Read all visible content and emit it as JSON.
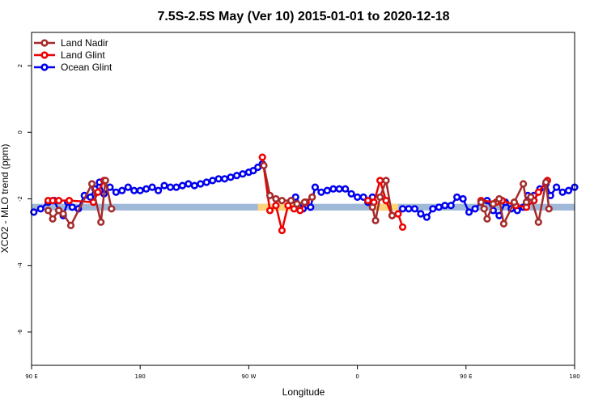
{
  "chart_data": {
    "type": "line",
    "title": "7.5S-2.5S May (Ver 10)   2015-01-01 to 2020-12-18",
    "xlabel": "Longitude",
    "ylabel": "XCO2 - MLO trend (ppm)",
    "xlim": [
      90,
      450
    ],
    "ylim": [
      -7.0,
      3.0
    ],
    "x_ticks": [
      {
        "value": 90,
        "label": "90 E"
      },
      {
        "value": 162,
        "label": "180"
      },
      {
        "value": 234,
        "label": "90 W"
      },
      {
        "value": 306,
        "label": "0"
      },
      {
        "value": 378,
        "label": "90 E"
      },
      {
        "value": 450,
        "label": "180"
      }
    ],
    "y_ticks": [
      {
        "value": 2,
        "label": "2"
      },
      {
        "value": 0,
        "label": "0"
      },
      {
        "value": -2,
        "label": "-2"
      },
      {
        "value": -4,
        "label": "-4"
      },
      {
        "value": -6,
        "label": "-6"
      }
    ],
    "grid": false,
    "legend_position": "top-left",
    "reference_bands": [
      {
        "color": "#9fb8d8",
        "y_min": -2.35,
        "y_max": -2.15,
        "x_range": [
          90,
          450
        ]
      },
      {
        "color": "#ffd37a",
        "y_min": -2.35,
        "y_max": -2.15,
        "x_range": [
          240,
          276
        ]
      },
      {
        "color": "#ffd37a",
        "y_min": -2.35,
        "y_max": -2.15,
        "x_range": [
          316,
          333
        ]
      }
    ],
    "series": [
      {
        "name": "Ocean Glint",
        "color": "#0000ee",
        "segments": [
          [
            [
              91.5,
              -2.4
            ],
            [
              96,
              -2.3
            ],
            [
              101,
              -2.1
            ],
            [
              105,
              -2.05
            ],
            [
              108,
              -2.35
            ],
            [
              111,
              -2.5
            ],
            [
              114,
              -2.1
            ],
            [
              117,
              -2.25
            ],
            [
              121,
              -2.3
            ],
            [
              125,
              -1.9
            ],
            [
              129,
              -1.95
            ],
            [
              132,
              -1.7
            ],
            [
              135,
              -1.5
            ],
            [
              138,
              -1.85
            ],
            [
              142,
              -1.65
            ],
            [
              146,
              -1.8
            ],
            [
              150,
              -1.75
            ],
            [
              154,
              -1.65
            ],
            [
              158,
              -1.75
            ],
            [
              162,
              -1.75
            ],
            [
              166,
              -1.7
            ],
            [
              170,
              -1.65
            ],
            [
              174,
              -1.75
            ],
            [
              178,
              -1.6
            ],
            [
              182,
              -1.65
            ],
            [
              186,
              -1.65
            ],
            [
              190,
              -1.6
            ],
            [
              194,
              -1.55
            ],
            [
              198,
              -1.6
            ],
            [
              202,
              -1.55
            ],
            [
              206,
              -1.5
            ],
            [
              210,
              -1.45
            ],
            [
              214,
              -1.4
            ],
            [
              218,
              -1.4
            ],
            [
              222,
              -1.35
            ],
            [
              226,
              -1.3
            ],
            [
              230,
              -1.25
            ],
            [
              234,
              -1.2
            ],
            [
              237,
              -1.15
            ],
            [
              240,
              -1.05
            ],
            [
              243,
              -0.95
            ]
          ],
          [
            [
              265,
              -1.95
            ],
            [
              270,
              -2.3
            ],
            [
              275,
              -2.25
            ],
            [
              278,
              -1.65
            ],
            [
              282,
              -1.8
            ],
            [
              286,
              -1.75
            ],
            [
              290,
              -1.7
            ],
            [
              294,
              -1.7
            ],
            [
              298,
              -1.7
            ],
            [
              302,
              -1.85
            ],
            [
              306,
              -1.95
            ],
            [
              310,
              -1.95
            ],
            [
              313,
              -2.1
            ],
            [
              316,
              -1.95
            ]
          ],
          [
            [
              336,
              -2.3
            ],
            [
              340,
              -2.3
            ],
            [
              344,
              -2.3
            ],
            [
              348,
              -2.45
            ],
            [
              352,
              -2.55
            ],
            [
              356,
              -2.3
            ],
            [
              360,
              -2.25
            ],
            [
              364,
              -2.2
            ],
            [
              368,
              -2.2
            ],
            [
              372,
              -1.95
            ],
            [
              376,
              -2.0
            ],
            [
              380,
              -2.4
            ],
            [
              384,
              -2.3
            ],
            [
              388,
              -2.1
            ],
            [
              392,
              -2.05
            ],
            [
              396,
              -2.35
            ],
            [
              400,
              -2.5
            ],
            [
              404,
              -2.1
            ],
            [
              408,
              -2.3
            ],
            [
              412,
              -2.35
            ],
            [
              416,
              -2.25
            ],
            [
              419,
              -1.9
            ],
            [
              423,
              -1.9
            ],
            [
              427,
              -1.7
            ],
            [
              431,
              -1.55
            ],
            [
              434,
              -1.9
            ],
            [
              438,
              -1.65
            ],
            [
              442,
              -1.8
            ],
            [
              446,
              -1.75
            ],
            [
              450,
              -1.65
            ]
          ]
        ]
      },
      {
        "name": "Land Glint",
        "color": "#ee0000",
        "segments": [
          [
            [
              101,
              -2.05
            ],
            [
              104,
              -2.05
            ],
            [
              108,
              -2.05
            ],
            [
              115,
              -2.05
            ],
            [
              131,
              -2.1
            ],
            [
              134,
              -1.8
            ],
            [
              138,
              -1.45
            ]
          ],
          [
            [
              243,
              -0.75
            ],
            [
              248,
              -2.35
            ],
            [
              252,
              -2.2
            ],
            [
              256,
              -2.95
            ],
            [
              260,
              -2.2
            ],
            [
              264,
              -2.3
            ],
            [
              268,
              -2.35
            ],
            [
              272,
              -2.1
            ],
            [
              276,
              -1.95
            ]
          ],
          [
            [
              313,
              -2.05
            ],
            [
              317,
              -2.1
            ],
            [
              321,
              -1.45
            ],
            [
              325,
              -2.05
            ],
            [
              329,
              -2.5
            ],
            [
              333,
              -2.45
            ],
            [
              336,
              -2.85
            ]
          ],
          [
            [
              388,
              -2.05
            ],
            [
              398,
              -2.1
            ],
            [
              402,
              -2.05
            ],
            [
              411,
              -2.2
            ],
            [
              418,
              -2.25
            ],
            [
              423,
              -2.05
            ],
            [
              426,
              -1.8
            ],
            [
              432,
              -1.45
            ]
          ]
        ]
      },
      {
        "name": "Land Nadir",
        "color": "#a52a2a",
        "segments": [
          [
            [
              101,
              -2.35
            ],
            [
              104,
              -2.6
            ],
            [
              108,
              -2.35
            ],
            [
              111,
              -2.45
            ],
            [
              116,
              -2.8
            ],
            [
              130,
              -1.55
            ],
            [
              136,
              -2.7
            ],
            [
              139,
              -1.45
            ],
            [
              143,
              -2.3
            ]
          ],
          [
            [
              244,
              -1.0
            ],
            [
              248,
              -1.9
            ],
            [
              252,
              -2.0
            ],
            [
              256,
              -2.05
            ],
            [
              262,
              -2.05
            ],
            [
              266,
              -2.15
            ],
            [
              271,
              -2.1
            ],
            [
              276,
              -1.95
            ]
          ],
          [
            [
              316,
              -2.25
            ],
            [
              318,
              -2.65
            ],
            [
              321,
              -1.95
            ],
            [
              325,
              -1.45
            ],
            [
              329,
              -2.5
            ]
          ],
          [
            [
              388,
              -2.1
            ],
            [
              390,
              -2.3
            ],
            [
              392,
              -2.6
            ],
            [
              396,
              -2.15
            ],
            [
              400,
              -2.0
            ],
            [
              403,
              -2.75
            ],
            [
              410,
              -2.1
            ],
            [
              416,
              -1.55
            ],
            [
              418,
              -2.1
            ],
            [
              421,
              -1.95
            ],
            [
              426,
              -2.7
            ],
            [
              431,
              -1.5
            ],
            [
              433,
              -2.3
            ]
          ]
        ]
      }
    ]
  }
}
